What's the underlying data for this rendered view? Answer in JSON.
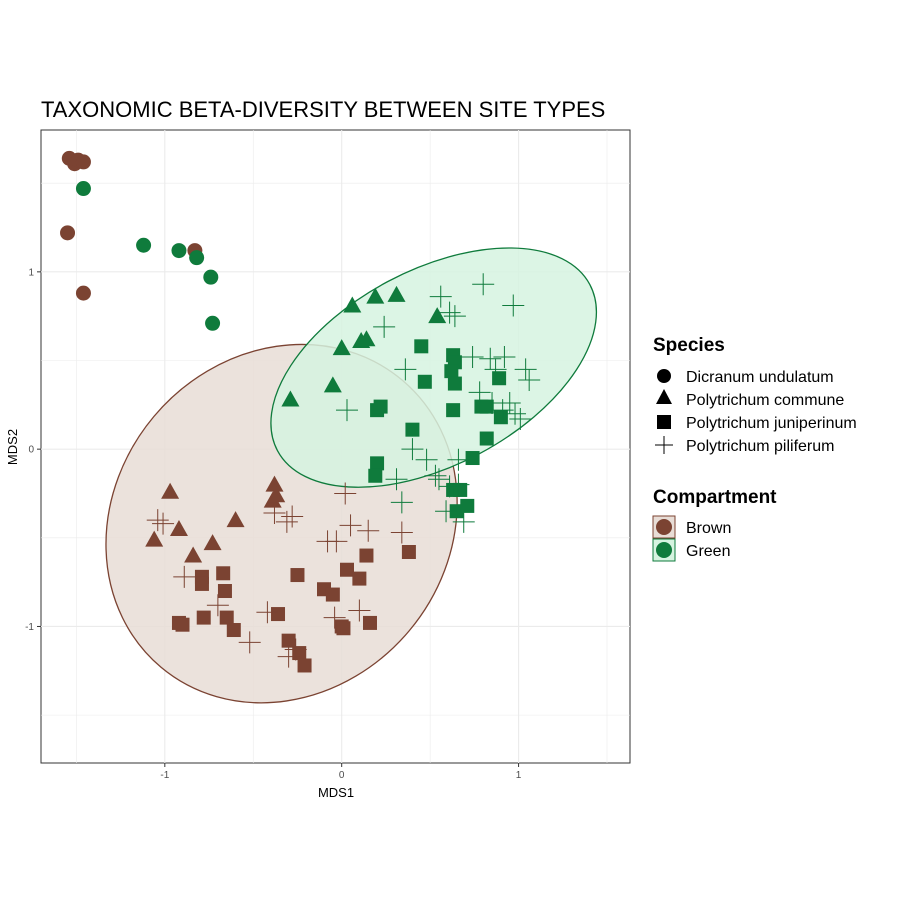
{
  "chart_data": {
    "type": "scatter",
    "title": "TAXONOMIC BETA-DIVERSITY BETWEEN SITE TYPES",
    "xlabel": "MDS1",
    "ylabel": "MDS2",
    "xlim": [
      -1.7,
      1.63
    ],
    "ylim": [
      -1.77,
      1.8
    ],
    "xticks": [
      -1,
      0,
      1
    ],
    "yticks": [
      -1,
      0,
      1
    ],
    "grid": true,
    "colors": {
      "Brown": "#7b4332",
      "Green": "#0f7b3c"
    },
    "fills": {
      "Brown": "#e8ddd6",
      "Green": "#d6f3e0"
    },
    "legend": {
      "species_title": "Species",
      "species": [
        {
          "label": "Dicranum undulatum",
          "shape": "circle"
        },
        {
          "label": "Polytrichum commune",
          "shape": "triangle"
        },
        {
          "label": "Polytrichum juniperinum",
          "shape": "square"
        },
        {
          "label": "Polytrichum piliferum",
          "shape": "cross"
        }
      ],
      "compartment_title": "Compartment",
      "compartments": [
        {
          "label": "Brown",
          "key": "Brown"
        },
        {
          "label": "Green",
          "key": "Green"
        }
      ]
    },
    "ellipses": [
      {
        "group": "Brown",
        "center": [
          -0.34,
          -0.42
        ],
        "rx": 1.06,
        "ry": 0.94,
        "angle": -50
      },
      {
        "group": "Green",
        "center": [
          0.52,
          0.46
        ],
        "rx": 1.0,
        "ry": 0.55,
        "angle": -28
      }
    ],
    "series": [
      {
        "name": "Dicranum undulatum",
        "compartment": "Brown",
        "shape": "circle",
        "points": [
          [
            -1.54,
            1.64
          ],
          [
            -1.51,
            1.61
          ],
          [
            -1.49,
            1.63
          ],
          [
            -1.46,
            1.62
          ],
          [
            -1.55,
            1.22
          ],
          [
            -1.46,
            0.88
          ],
          [
            -0.83,
            1.12
          ]
        ]
      },
      {
        "name": "Dicranum undulatum",
        "compartment": "Green",
        "shape": "circle",
        "points": [
          [
            -1.46,
            1.47
          ],
          [
            -1.12,
            1.15
          ],
          [
            -0.92,
            1.12
          ],
          [
            -0.82,
            1.08
          ],
          [
            -0.74,
            0.97
          ],
          [
            -0.73,
            0.71
          ]
        ]
      },
      {
        "name": "Polytrichum commune",
        "compartment": "Brown",
        "shape": "triangle",
        "points": [
          [
            -0.97,
            -0.24
          ],
          [
            -1.06,
            -0.51
          ],
          [
            -0.92,
            -0.45
          ],
          [
            -0.84,
            -0.6
          ],
          [
            -0.73,
            -0.53
          ],
          [
            -0.6,
            -0.4
          ],
          [
            -0.39,
            -0.29
          ],
          [
            -0.38,
            -0.2
          ],
          [
            -0.37,
            -0.26
          ]
        ]
      },
      {
        "name": "Polytrichum commune",
        "compartment": "Green",
        "shape": "triangle",
        "points": [
          [
            0.06,
            0.81
          ],
          [
            0.19,
            0.86
          ],
          [
            0.31,
            0.87
          ],
          [
            0.54,
            0.75
          ],
          [
            0.11,
            0.61
          ],
          [
            0.14,
            0.62
          ],
          [
            0.0,
            0.57
          ],
          [
            -0.05,
            0.36
          ],
          [
            -0.29,
            0.28
          ]
        ]
      },
      {
        "name": "Polytrichum juniperinum",
        "compartment": "Brown",
        "shape": "square",
        "points": [
          [
            -0.79,
            -0.72
          ],
          [
            -0.79,
            -0.76
          ],
          [
            -0.67,
            -0.7
          ],
          [
            -0.66,
            -0.8
          ],
          [
            -0.92,
            -0.98
          ],
          [
            -0.9,
            -0.99
          ],
          [
            -0.78,
            -0.95
          ],
          [
            -0.65,
            -0.95
          ],
          [
            -0.61,
            -1.02
          ],
          [
            -0.36,
            -0.93
          ],
          [
            -0.3,
            -1.08
          ],
          [
            -0.24,
            -1.15
          ],
          [
            -0.21,
            -1.22
          ],
          [
            -0.25,
            -0.71
          ],
          [
            -0.1,
            -0.79
          ],
          [
            -0.05,
            -0.82
          ],
          [
            0.03,
            -0.68
          ],
          [
            0.1,
            -0.73
          ],
          [
            0.14,
            -0.6
          ],
          [
            0.0,
            -1.0
          ],
          [
            0.01,
            -1.01
          ],
          [
            0.16,
            -0.98
          ],
          [
            0.38,
            -0.58
          ]
        ]
      },
      {
        "name": "Polytrichum juniperinum",
        "compartment": "Green",
        "shape": "square",
        "points": [
          [
            0.45,
            0.58
          ],
          [
            0.63,
            0.53
          ],
          [
            0.64,
            0.49
          ],
          [
            0.62,
            0.44
          ],
          [
            0.64,
            0.37
          ],
          [
            0.47,
            0.38
          ],
          [
            0.89,
            0.4
          ],
          [
            0.2,
            0.22
          ],
          [
            0.22,
            0.24
          ],
          [
            0.79,
            0.24
          ],
          [
            0.82,
            0.24
          ],
          [
            0.9,
            0.18
          ],
          [
            0.63,
            0.22
          ],
          [
            0.4,
            0.11
          ],
          [
            0.82,
            0.06
          ],
          [
            0.74,
            -0.05
          ],
          [
            0.2,
            -0.08
          ],
          [
            0.19,
            -0.15
          ],
          [
            0.63,
            -0.23
          ],
          [
            0.67,
            -0.23
          ],
          [
            0.65,
            -0.35
          ],
          [
            0.71,
            -0.32
          ]
        ]
      },
      {
        "name": "Polytrichum piliferum",
        "compartment": "Brown",
        "shape": "cross",
        "points": [
          [
            -1.04,
            -0.4
          ],
          [
            -1.01,
            -0.42
          ],
          [
            -0.89,
            -0.72
          ],
          [
            -0.7,
            -0.88
          ],
          [
            -0.52,
            -1.09
          ],
          [
            -0.42,
            -0.92
          ],
          [
            -0.38,
            -0.36
          ],
          [
            -0.31,
            -0.41
          ],
          [
            -0.28,
            -0.38
          ],
          [
            -0.3,
            -1.17
          ],
          [
            -0.26,
            -1.13
          ],
          [
            -0.08,
            -0.52
          ],
          [
            -0.03,
            -0.52
          ],
          [
            0.02,
            -0.25
          ],
          [
            0.05,
            -0.43
          ],
          [
            0.15,
            -0.46
          ],
          [
            0.34,
            -0.47
          ],
          [
            -0.04,
            -0.95
          ],
          [
            0.1,
            -0.91
          ]
        ]
      },
      {
        "name": "Polytrichum piliferum",
        "compartment": "Green",
        "shape": "cross",
        "points": [
          [
            0.56,
            0.86
          ],
          [
            0.61,
            0.77
          ],
          [
            0.64,
            0.75
          ],
          [
            0.24,
            0.69
          ],
          [
            0.8,
            0.93
          ],
          [
            0.97,
            0.81
          ],
          [
            0.74,
            0.52
          ],
          [
            0.84,
            0.51
          ],
          [
            0.92,
            0.52
          ],
          [
            0.87,
            0.45
          ],
          [
            1.04,
            0.45
          ],
          [
            1.06,
            0.39
          ],
          [
            0.78,
            0.32
          ],
          [
            0.85,
            0.26
          ],
          [
            0.95,
            0.26
          ],
          [
            0.91,
            0.22
          ],
          [
            0.98,
            0.2
          ],
          [
            1.01,
            0.17
          ],
          [
            0.36,
            0.45
          ],
          [
            0.03,
            0.22
          ],
          [
            0.48,
            -0.06
          ],
          [
            0.55,
            -0.17
          ],
          [
            0.61,
            -0.21
          ],
          [
            0.53,
            -0.15
          ],
          [
            0.34,
            -0.3
          ],
          [
            0.31,
            -0.17
          ],
          [
            0.66,
            -0.2
          ],
          [
            0.59,
            -0.35
          ],
          [
            0.69,
            -0.41
          ],
          [
            0.66,
            -0.06
          ],
          [
            0.4,
            0.0
          ]
        ]
      }
    ]
  }
}
